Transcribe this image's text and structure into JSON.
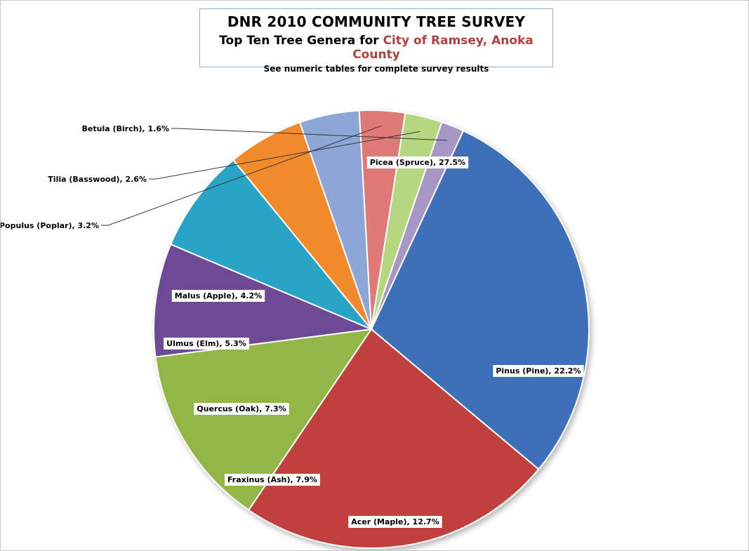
{
  "chart_data": {
    "type": "pie",
    "title": "DNR 2010 COMMUNITY TREE SURVEY",
    "subtitle_prefix": "Top Ten Tree Genera for ",
    "subtitle_highlight": "City of Ramsey, Anoka County",
    "note": "See numeric tables for complete survey results",
    "slices": [
      {
        "label": "Picea (Spruce), 27.5%",
        "name": "Picea (Spruce)",
        "value": 27.5,
        "color": "#3d70b8"
      },
      {
        "label": "Pinus (Pine), 22.2%",
        "name": "Pinus (Pine)",
        "value": 22.2,
        "color": "#c0403c"
      },
      {
        "label": "Acer (Maple), 12.7%",
        "name": "Acer (Maple)",
        "value": 12.7,
        "color": "#92b746"
      },
      {
        "label": "Fraxinus (Ash), 7.9%",
        "name": "Fraxinus (Ash)",
        "value": 7.9,
        "color": "#6e4a94"
      },
      {
        "label": "Quercus (Oak), 7.3%",
        "name": "Quercus (Oak)",
        "value": 7.3,
        "color": "#2ba4c6"
      },
      {
        "label": "Ulmus (Elm), 5.3%",
        "name": "Ulmus (Elm)",
        "value": 5.3,
        "color": "#f18a2a"
      },
      {
        "label": "Malus (Apple), 4.2%",
        "name": "Malus (Apple)",
        "value": 4.2,
        "color": "#8da6d8"
      },
      {
        "label": "Populus (Poplar), 3.2%",
        "name": "Populus (Poplar)",
        "value": 3.2,
        "color": "#e07a78"
      },
      {
        "label": "Tilia (Basswood), 2.6%",
        "name": "Tilia (Basswood)",
        "value": 2.6,
        "color": "#b5d77f"
      },
      {
        "label": "Betula (Birch), 1.6%",
        "name": "Betula (Birch)",
        "value": 1.6,
        "color": "#a796c6"
      }
    ]
  }
}
